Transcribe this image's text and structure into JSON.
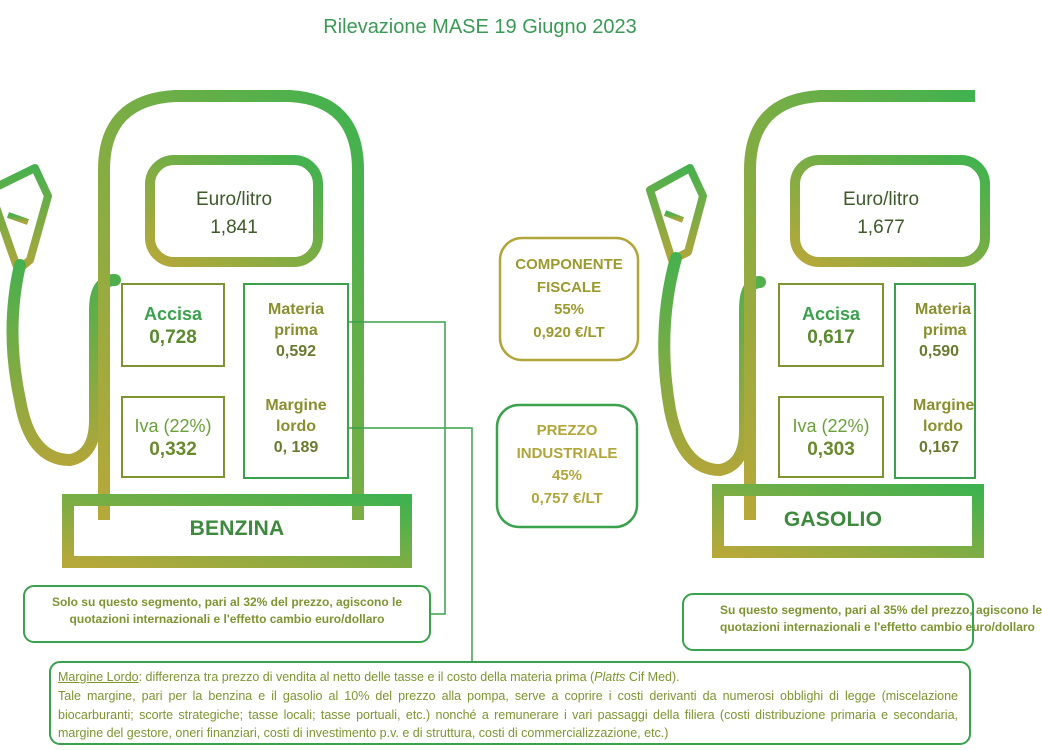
{
  "page": {
    "title": "Rilevazione MASE 19 Giugno 2023"
  },
  "colors": {
    "accent_green": "#3aa14d",
    "olive": "#7d9430",
    "gold": "#b0a63a"
  },
  "benzina": {
    "name": "BENZINA",
    "euro_label": "Euro/litro",
    "price": "1,841",
    "accisa_label": "Accisa",
    "accisa_value": "0,728",
    "iva_label": "Iva (22%)",
    "iva_value": "0,332",
    "materia_label_1": "Materia",
    "materia_label_2": "prima",
    "materia_value": "0,592",
    "margine_label_1": "Margine",
    "margine_label_2": "lordo",
    "margine_value": "0, 189",
    "note_line1": "Solo su questo segmento, pari al 32% del prezzo, agiscono le",
    "note_line2": "quotazioni internazionali e l'effetto cambio euro/dollaro"
  },
  "gasolio": {
    "name": "GASOLIO",
    "euro_label": "Euro/litro",
    "price": "1,677",
    "accisa_label": "Accisa",
    "accisa_value": "0,617",
    "iva_label": "Iva (22%)",
    "iva_value": "0,303",
    "materia_label_1": "Materia",
    "materia_label_2": "prima",
    "materia_value": "0,590",
    "margine_label_1": "Margine",
    "margine_label_2": "lordo",
    "margine_value": "0,167",
    "note_line1": "Su questo segmento, pari al 35% del prezzo, agiscono le",
    "note_line2": "quotazioni internazionali e l'effetto cambio euro/dollaro"
  },
  "componente_fiscale": {
    "line1": "COMPONENTE",
    "line2": "FISCALE",
    "pct": "55%",
    "value": "0,920 €/LT"
  },
  "prezzo_industriale": {
    "line1": "PREZZO",
    "line2": "INDUSTRIALE",
    "pct": "45%",
    "value": "0,757 €/LT"
  },
  "margine_note": {
    "term": "Margine Lordo",
    "def_part1": ": differenza tra prezzo di vendita al netto delle tasse e il costo della materia prima (",
    "def_italic": "Platts",
    "def_part2": " Cif Med).",
    "body": "Tale margine, pari per la benzina e il gasolio al 10% del prezzo alla pompa, serve a coprire i costi derivanti da numerosi obblighi di legge (miscelazione biocarburanti; scorte strategiche; tasse locali; tasse portuali, etc.) nonché a remunerare i vari passaggi della filiera (costi distribuzione primaria e secondaria, margine del gestore, oneri finanziari, costi di investimento p.v. e di struttura, costi di commercializzazione, etc.)"
  }
}
